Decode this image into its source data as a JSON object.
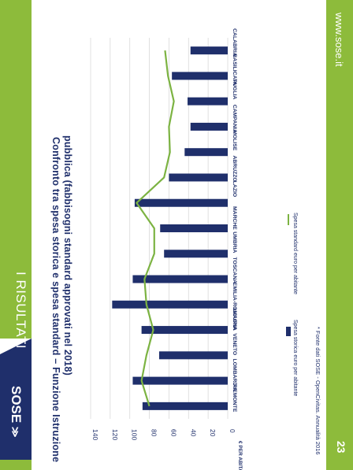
{
  "section_title": "I RISULTATI",
  "chart_title_line1": "Confronto tra spesa storica e spesa standard – Funzione Istruzione",
  "chart_title_line2": "pubblica (fabbisogni standard approvati nel 2018)",
  "footnote": "* Fonte dati SOSE - OpenCivitas. Annualità 2016",
  "website": "www.sose.it",
  "page_number": "23",
  "logo_text": "SOSE",
  "colors": {
    "accent_green": "#8dbb3b",
    "navy": "#1f2f6b",
    "line_green": "#7cb342"
  },
  "chart_data": {
    "type": "bar",
    "categories": [
      "PIEMONTE",
      "LOMBARDIA",
      "VENETO",
      "LIGURIA",
      "EMILIA-ROMAGNA",
      "TOSCANA",
      "UMBRIA",
      "MARCHE",
      "LAZIO",
      "ABRUZZO",
      "MOLISE",
      "CAMPANIA",
      "PUGLIA",
      "BASILICATA",
      "CALABRIA"
    ],
    "series": [
      {
        "name": "Spesa storica euro per abitante",
        "type": "bar",
        "values": [
          87,
          97,
          70,
          88,
          118,
          97,
          65,
          69,
          95,
          60,
          44,
          38,
          41,
          57,
          38
        ]
      },
      {
        "name": "Spesa standard euro per abitante",
        "type": "line",
        "values": [
          80,
          88,
          83,
          76,
          83,
          85,
          75,
          75,
          93,
          65,
          59,
          60,
          55,
          61,
          64
        ]
      }
    ],
    "ylabel": "€ PER ABITANTE",
    "yticks": [
      "0",
      "20",
      "40",
      "60",
      "80",
      "100",
      "120",
      "140"
    ],
    "ylim": [
      0,
      140
    ],
    "grid": true,
    "legend_position": "bottom"
  }
}
